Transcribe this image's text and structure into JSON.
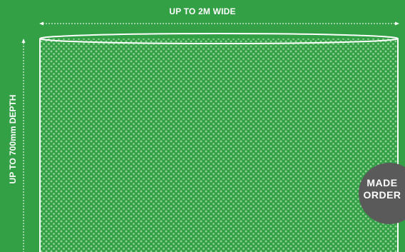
{
  "width_label": "UP TO 2M WIDE",
  "depth_label": "UP TO 700mm DEPTH",
  "badge": {
    "line1": "MADE",
    "line2": "ORDER"
  },
  "colors": {
    "background": "#34a046",
    "dots": "#8fd196",
    "outline": "#ffffff",
    "badge": "#5a5a5a"
  }
}
